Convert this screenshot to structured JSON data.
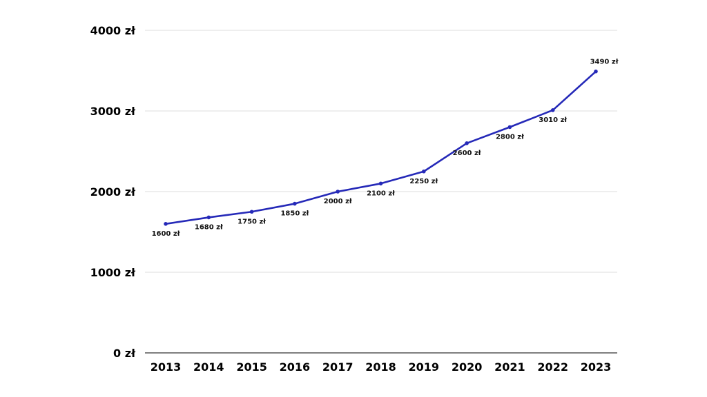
{
  "chart_data": {
    "type": "line",
    "title": "",
    "xlabel": "",
    "ylabel": "",
    "x": [
      "2013",
      "2014",
      "2015",
      "2016",
      "2017",
      "2018",
      "2019",
      "2020",
      "2021",
      "2022",
      "2023"
    ],
    "series": [
      {
        "values": [
          1600,
          1680,
          1750,
          1850,
          2000,
          2100,
          2250,
          2600,
          2800,
          3010,
          3490
        ],
        "labels": [
          "1600 zł",
          "1680 zł",
          "1750 zł",
          "1850 zł",
          "2000 zł",
          "2100 zł",
          "2250 zł",
          "2600 zł",
          "2800 zł",
          "3010 zł",
          "3490 zł"
        ]
      }
    ],
    "ylim": [
      0,
      4000
    ],
    "yticks": [
      {
        "value": 0,
        "label": "0 zł"
      },
      {
        "value": 1000,
        "label": "1000 zł"
      },
      {
        "value": 2000,
        "label": "2000 zł"
      },
      {
        "value": 3000,
        "label": "3000 zł"
      },
      {
        "value": 4000,
        "label": "4000 zł"
      }
    ],
    "grid": true,
    "legend": "none",
    "colors": {
      "line": "#2529b8",
      "grid": "#dddddd",
      "axis": "#333333"
    }
  }
}
